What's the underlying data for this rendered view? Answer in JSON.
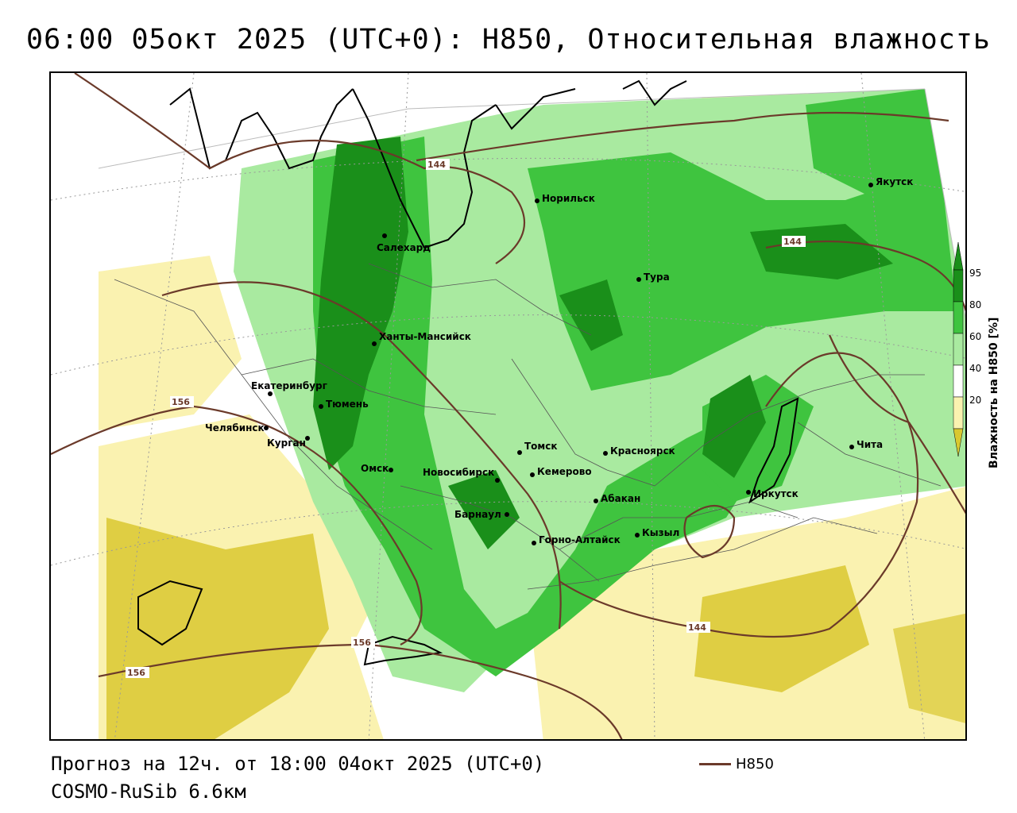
{
  "title": "06:00 05окт 2025 (UTC+0): H850, Относительная влажность",
  "footer": {
    "forecast": "Прогноз на 12ч. от 18:00 04окт 2025 (UTC+0)",
    "model": "COSMO-RuSib 6.6км",
    "line_legend": "H850"
  },
  "legend": {
    "title": "Влажность на H850 [%]",
    "levels": [
      "95",
      "80",
      "60",
      "40",
      "20"
    ],
    "colors": {
      "very_high": "#1a8f1a",
      "high": "#3fc43f",
      "moderate": "#a9eaa0",
      "dry": "#faf2b0",
      "very_dry": "#d9c830"
    }
  },
  "isolines": {
    "color": "#6b3a2a",
    "labels": [
      "144",
      "144",
      "144",
      "156",
      "156",
      "156"
    ]
  },
  "cities": [
    {
      "name": "Якутск"
    },
    {
      "name": "Норильск"
    },
    {
      "name": "Салехард"
    },
    {
      "name": "Тура"
    },
    {
      "name": "Ханты-Мансийск"
    },
    {
      "name": "Екатеринбург"
    },
    {
      "name": "Тюмень"
    },
    {
      "name": "Челябинск"
    },
    {
      "name": "Курган"
    },
    {
      "name": "Омск"
    },
    {
      "name": "Новосибирск"
    },
    {
      "name": "Томск"
    },
    {
      "name": "Кемерово"
    },
    {
      "name": "Красноярск"
    },
    {
      "name": "Барнаул"
    },
    {
      "name": "Абакан"
    },
    {
      "name": "Горно-Алтайск"
    },
    {
      "name": "Кызыл"
    },
    {
      "name": "Иркутск"
    },
    {
      "name": "Чита"
    }
  ]
}
